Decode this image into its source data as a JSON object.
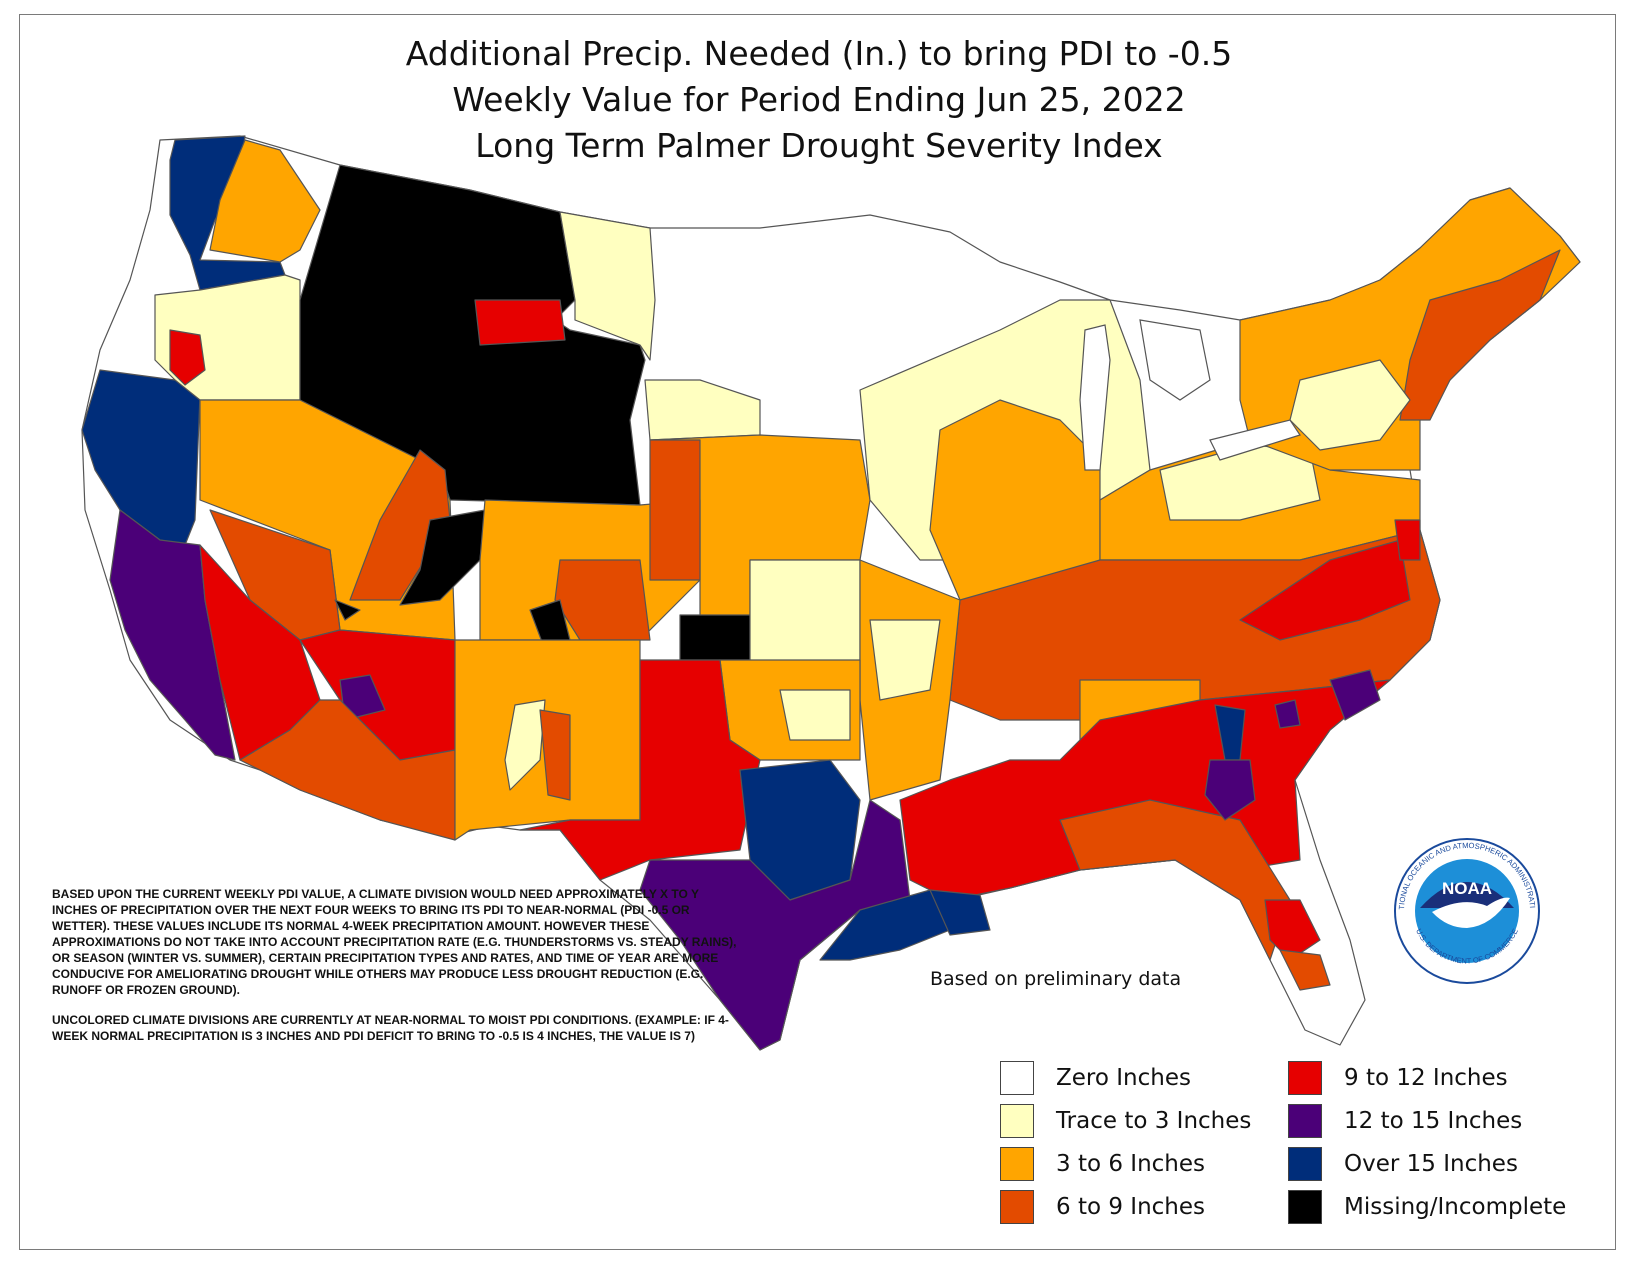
{
  "title": {
    "line1": "Additional Precip. Needed (In.) to bring PDI to -0.5",
    "line2": "Weekly Value for Period Ending Jun 25, 2022",
    "line3": "Long Term Palmer Drought Severity Index"
  },
  "note": {
    "paragraph1": "BASED UPON THE CURRENT WEEKLY PDI VALUE, A CLIMATE DIVISION WOULD NEED APPROXIMATELY X TO Y INCHES OF PRECIPITATION OVER THE NEXT FOUR WEEKS TO BRING ITS PDI TO NEAR-NORMAL (PDI -0.5 OR WETTER). THESE VALUES INCLUDE ITS NORMAL 4-WEEK PRECIPITATION AMOUNT. HOWEVER THESE APPROXIMATIONS DO NOT TAKE INTO ACCOUNT PRECIPITATION RATE (E.G. THUNDERSTORMS VS. STEADY RAINS), OR SEASON (WINTER VS. SUMMER), CERTAIN PRECIPITATION TYPES AND RATES, AND TIME OF YEAR ARE MORE CONDUCIVE FOR AMELIORATING DROUGHT WHILE OTHERS MAY PRODUCE LESS DROUGHT REDUCTION (E.G. RUNOFF OR FROZEN GROUND).",
    "paragraph2": "UNCOLORED CLIMATE DIVISIONS ARE CURRENTLY AT NEAR-NORMAL TO MOIST PDI CONDITIONS. (EXAMPLE: IF 4-WEEK NORMAL PRECIPITATION IS 3 INCHES AND PDI DEFICIT TO BRING TO -0.5 IS 4 INCHES, THE VALUE IS 7)"
  },
  "prelim_note": "Based on preliminary data",
  "logo": {
    "text": "NOAA",
    "ring_top": "NATIONAL OCEANIC AND ATMOSPHERIC ADMINISTRATION",
    "ring_bottom": "U.S. DEPARTMENT OF COMMERCE"
  },
  "legend": [
    {
      "label": "Zero Inches",
      "color": "#ffffff"
    },
    {
      "label": "Trace to 3 Inches",
      "color": "#ffffc0"
    },
    {
      "label": "3 to 6 Inches",
      "color": "#ffa500"
    },
    {
      "label": "6 to 9 Inches",
      "color": "#e34b00"
    },
    {
      "label": "9 to 12 Inches",
      "color": "#e60000"
    },
    {
      "label": "12 to 15 Inches",
      "color": "#4b0078"
    },
    {
      "label": "Over 15 Inches",
      "color": "#002d7a"
    },
    {
      "label": "Missing/Incomplete",
      "color": "#000000"
    }
  ]
}
